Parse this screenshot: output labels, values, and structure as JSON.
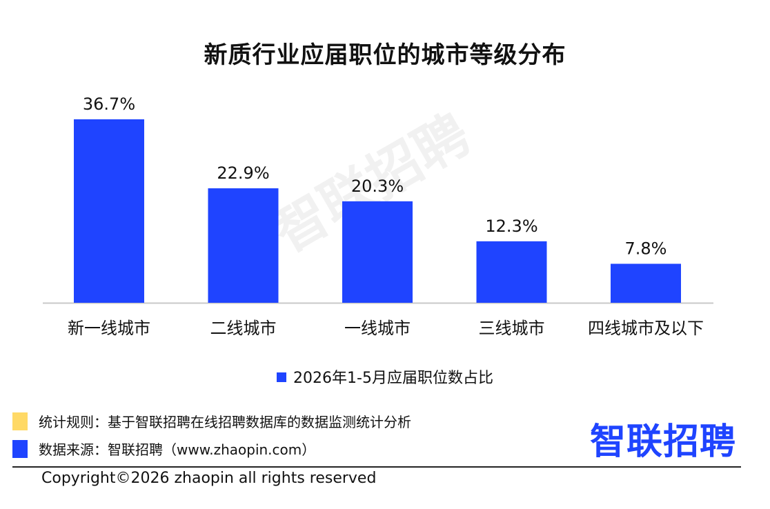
{
  "chart_data": {
    "type": "bar",
    "title": "新质行业应届职位的城市等级分布",
    "categories": [
      "新一线城市",
      "二线城市",
      "一线城市",
      "三线城市",
      "四线城市及以下"
    ],
    "series": [
      {
        "name": "2026年1-5月应届职位数占比",
        "values": [
          36.7,
          22.9,
          20.3,
          12.3,
          7.8
        ]
      }
    ],
    "value_labels": [
      "36.7%",
      "22.9%",
      "20.3%",
      "12.3%",
      "7.8%"
    ],
    "ylim": [
      0,
      36.7
    ],
    "grid": false,
    "legend_position": "bottom-center",
    "bar_color": "#1f44ff"
  },
  "watermark": "智联招聘",
  "notes": {
    "rule_text": "统计规则：基于智联招聘在线招聘数据库的数据监测统计分析",
    "rule_color": "#ffd966",
    "source_text": "数据来源：智联招聘（www.zhaopin.com）",
    "source_color": "#1f44ff"
  },
  "logo": "智联招聘",
  "copyright": "Copyright©2026 zhaopin all rights reserved"
}
